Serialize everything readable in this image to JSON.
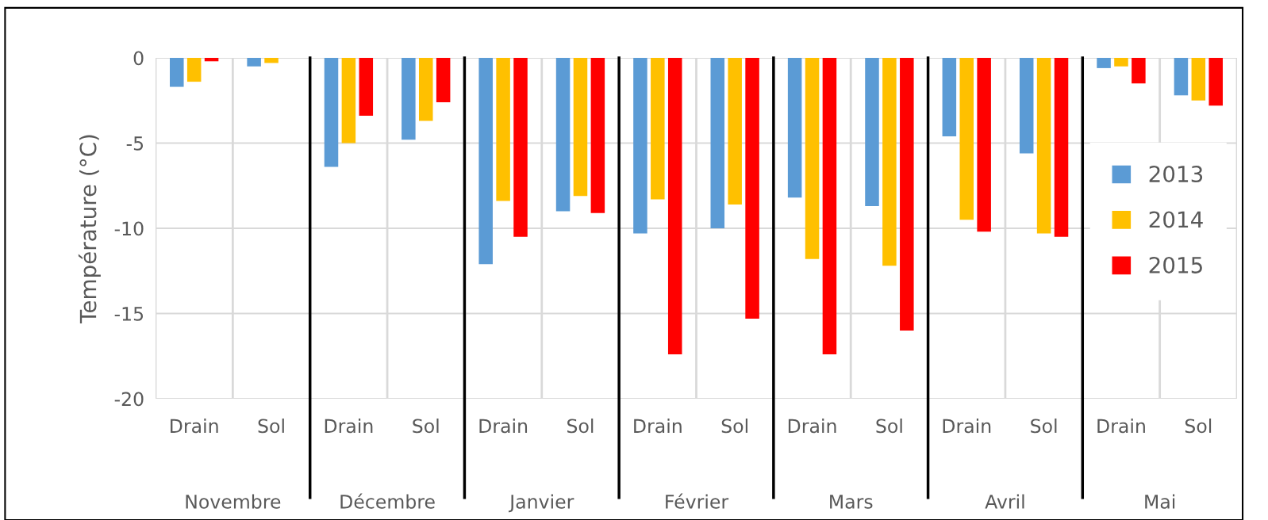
{
  "chart_data": {
    "type": "bar",
    "ylabel": "Température (°C)",
    "categories": [
      "Drain",
      "Sol",
      "Drain",
      "Sol",
      "Drain",
      "Sol",
      "Drain",
      "Sol",
      "Drain",
      "Sol",
      "Drain",
      "Sol",
      "Drain",
      "Sol"
    ],
    "annotations": [
      "Novembre",
      "Décembre",
      "Janvier",
      "Février",
      "Mars",
      "Avril",
      "Mai"
    ],
    "series": [
      {
        "name": "2013",
        "color": "#5b9bd5",
        "values": [
          -1.7,
          -0.5,
          -6.4,
          -4.8,
          -12.1,
          -9.0,
          -10.3,
          -10.0,
          -8.2,
          -8.7,
          -4.6,
          -5.6,
          -0.6,
          -2.2
        ]
      },
      {
        "name": "2014",
        "color": "#ffc000",
        "values": [
          -1.4,
          -0.3,
          -5.0,
          -3.7,
          -8.4,
          -8.1,
          -8.3,
          -8.6,
          -11.8,
          -12.2,
          -9.5,
          -10.3,
          -0.5,
          -2.5
        ]
      },
      {
        "name": "2015",
        "color": "#ff0000",
        "values": [
          -0.2,
          null,
          -3.4,
          -2.6,
          -10.5,
          -9.1,
          -17.4,
          -15.3,
          -17.4,
          -16.0,
          -10.2,
          -10.5,
          -1.5,
          -2.8
        ]
      }
    ],
    "ylim": [
      -20,
      0
    ],
    "yticks": [
      -20,
      -15,
      -10,
      -5,
      0
    ],
    "grid": true,
    "legend": "right"
  }
}
